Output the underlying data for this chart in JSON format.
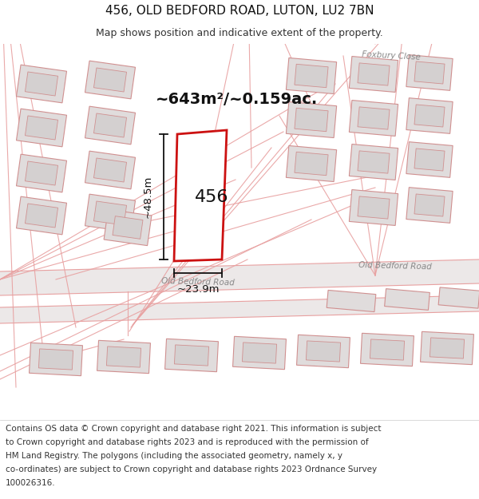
{
  "title_line1": "456, OLD BEDFORD ROAD, LUTON, LU2 7BN",
  "title_line2": "Map shows position and indicative extent of the property.",
  "area_label": "~643m²/~0.159ac.",
  "property_number": "456",
  "dim_height": "~48.5m",
  "dim_width": "~23.9m",
  "road_label_main": "Old Bedford Road",
  "road_label_right": "Old Bedford Road",
  "road_label_center": "Old Bedford Road",
  "area_close": "Foxbury Close",
  "map_bg": "#f7f4f4",
  "block_fill": "#e0dcdc",
  "block_edge": "#d09090",
  "inner_fill": "#d4d0d0",
  "road_stripe": "#e8e0e0",
  "red_color": "#cc1111",
  "pink_road": "#e8a0a0",
  "dim_color": "#111111",
  "title_fontsize": 11,
  "subtitle_fontsize": 9,
  "footer_fontsize": 7.5,
  "footer_lines": [
    "Contains OS data © Crown copyright and database right 2021. This information is subject",
    "to Crown copyright and database rights 2023 and is reproduced with the permission of",
    "HM Land Registry. The polygons (including the associated geometry, namely x, y",
    "co-ordinates) are subject to Crown copyright and database rights 2023 Ordnance Survey",
    "100026316."
  ]
}
